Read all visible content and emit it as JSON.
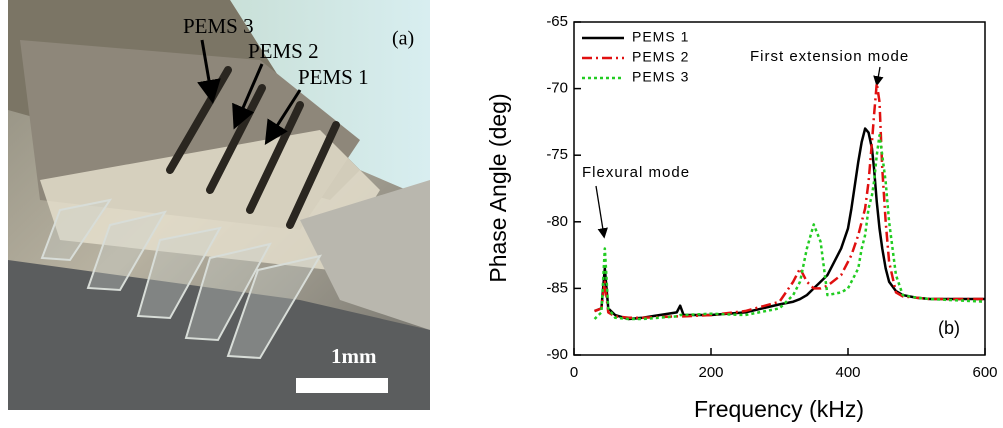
{
  "photo": {
    "labels": [
      "PEMS 3",
      "PEMS 2",
      "PEMS 1"
    ],
    "panel_label": "(a)",
    "scale_label": "1mm"
  },
  "chart_data": {
    "type": "line",
    "xlabel": "Frequency (kHz)",
    "ylabel": "Phase Angle (deg)",
    "panel_label": "(b)",
    "annotations": [
      "First extension mode",
      "Flexural mode"
    ],
    "xlim": [
      0,
      600
    ],
    "xticks": [
      0,
      200,
      400,
      600
    ],
    "ylim": [
      -90,
      -65
    ],
    "yticks": [
      -90,
      -85,
      -80,
      -75,
      -70,
      -65
    ],
    "legend": "upper left",
    "x": [
      30,
      40,
      45,
      50,
      60,
      80,
      100,
      150,
      155,
      160,
      200,
      250,
      300,
      320,
      330,
      340,
      350,
      360,
      370,
      390,
      400,
      405,
      415,
      420,
      425,
      430,
      435,
      438,
      442,
      446,
      450,
      455,
      460,
      470,
      480,
      500,
      520,
      600
    ],
    "series": [
      {
        "name": "PEMS 1",
        "color": "#000000",
        "dash": "none",
        "values": [
          -86.7,
          -86.5,
          -83.5,
          -86.5,
          -87,
          -87.3,
          -87.2,
          -86.8,
          -86.3,
          -87,
          -87,
          -86.8,
          -86.2,
          -86,
          -85.8,
          -85.5,
          -85,
          -84.5,
          -84,
          -82,
          -80.5,
          -79,
          -75.5,
          -74,
          -73,
          -73.3,
          -74.5,
          -76,
          -78.5,
          -80.5,
          -82,
          -83.5,
          -84.5,
          -85.2,
          -85.5,
          -85.7,
          -85.8,
          -85.8
        ]
      },
      {
        "name": "PEMS 2",
        "color": "#e01010",
        "dash": "10 4 2 4",
        "values": [
          -86.7,
          -86.5,
          -84.5,
          -86.8,
          -87.1,
          -87.2,
          -87.2,
          -87.1,
          -87.1,
          -87.1,
          -87,
          -86.7,
          -86,
          -84.5,
          -83.5,
          -84.5,
          -85,
          -85,
          -84.8,
          -84,
          -83,
          -82.5,
          -81,
          -80,
          -79,
          -77,
          -74,
          -72,
          -69.6,
          -71,
          -76,
          -80,
          -83,
          -85.3,
          -85.6,
          -85.7,
          -85.8,
          -85.8
        ]
      },
      {
        "name": "PEMS 3",
        "color": "#22cc22",
        "dash": "3 3",
        "values": [
          -87.3,
          -86.8,
          -82,
          -86.5,
          -87.2,
          -87.3,
          -87.3,
          -87.1,
          -87,
          -87,
          -86.9,
          -87,
          -86.5,
          -85.5,
          -84.5,
          -82,
          -80.2,
          -81.5,
          -85.5,
          -85.3,
          -85,
          -84.5,
          -83.5,
          -82,
          -81,
          -79,
          -78,
          -77,
          -75,
          -73.5,
          -75,
          -77,
          -80,
          -84,
          -85.5,
          -85.7,
          -85.8,
          -86
        ]
      }
    ]
  }
}
